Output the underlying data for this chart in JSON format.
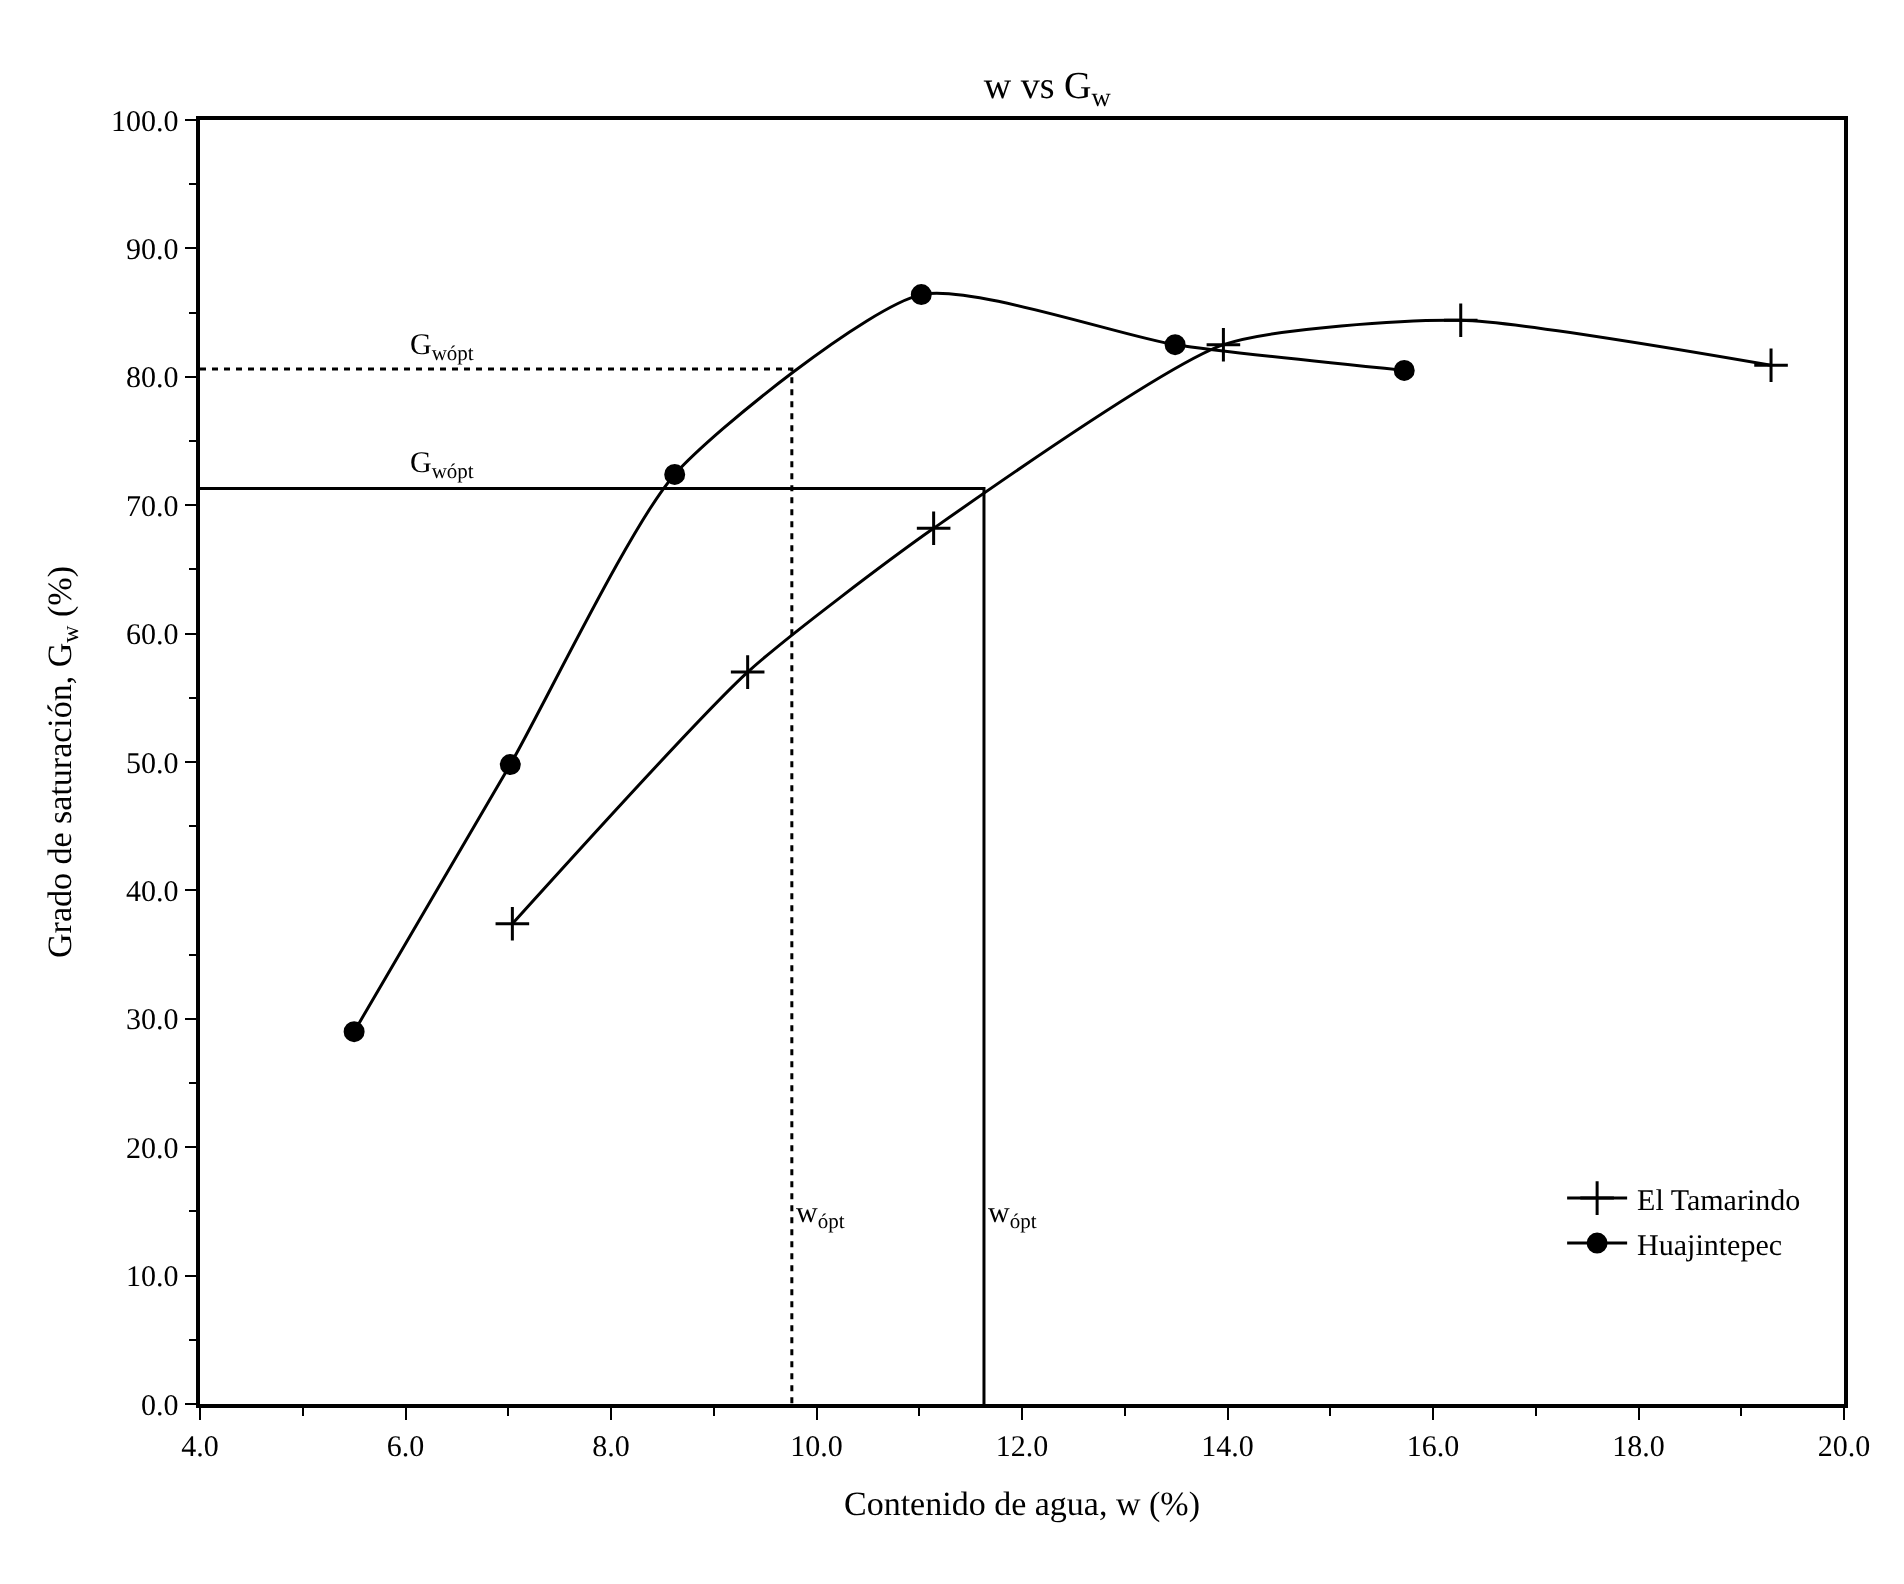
{
  "chart_data": {
    "type": "line",
    "title": "w vs G$_{w}$",
    "xlabel": "Contenido de agua, w (%)",
    "ylabel": "Grado de saturación, G$_{w}$ (%)",
    "xlim": [
      4,
      20
    ],
    "ylim": [
      0,
      100
    ],
    "xticks": [
      {
        "value": 4,
        "label": "4.0"
      },
      {
        "value": 6,
        "label": "6.0"
      },
      {
        "value": 8,
        "label": "8.0"
      },
      {
        "value": 10,
        "label": "10.0"
      },
      {
        "value": 12,
        "label": "12.0"
      },
      {
        "value": 14,
        "label": "14.0"
      },
      {
        "value": 16,
        "label": "16.0"
      },
      {
        "value": 18,
        "label": "18.0"
      },
      {
        "value": 20,
        "label": "20.0"
      }
    ],
    "yticks": [
      {
        "value": 0,
        "label": "0.0"
      },
      {
        "value": 10,
        "label": "10.0"
      },
      {
        "value": 20,
        "label": "20.0"
      },
      {
        "value": 30,
        "label": "30.0"
      },
      {
        "value": 40,
        "label": "40.0"
      },
      {
        "value": 50,
        "label": "50.0"
      },
      {
        "value": 60,
        "label": "60.0"
      },
      {
        "value": 70,
        "label": "70.0"
      },
      {
        "value": 80,
        "label": "80.0"
      },
      {
        "value": 90,
        "label": "90.0"
      },
      {
        "value": 100,
        "label": "100.0"
      }
    ],
    "legend": "bottom right",
    "series": [
      {
        "name": "El Tamarindo",
        "color": "#000000",
        "marker": "cross",
        "x": [
          7.04,
          9.33,
          11.14,
          13.96,
          16.27,
          19.29
        ],
        "values": [
          37.4,
          57.0,
          68.2,
          82.5,
          84.4,
          80.9
        ]
      },
      {
        "name": "Huajintepec",
        "color": "#000000",
        "marker": "circle",
        "x": [
          5.5,
          7.02,
          8.62,
          11.02,
          13.49,
          15.72
        ],
        "values": [
          29.0,
          49.8,
          72.4,
          86.4,
          82.5,
          80.5
        ]
      },
      {
        "color": "#000000",
        "marker": "none",
        "line_style": "dotted",
        "x": [
          4,
          9.76,
          9.76
        ],
        "values": [
          80.6,
          80.6,
          0
        ]
      },
      {
        "color": "#000000",
        "marker": "none",
        "line_style": "solid",
        "x": [
          4,
          11.63,
          11.63
        ],
        "values": [
          71.3,
          71.3,
          0
        ]
      }
    ],
    "annotations": [
      {
        "text": "G$_{wópt}$",
        "x": 6.0,
        "y": 80.6
      },
      {
        "text": "G$_{wópt}$",
        "x": 6.0,
        "y": 71.3
      },
      {
        "text": "w$_{ópt}$",
        "x": 9.76,
        "y": 13
      },
      {
        "text": "w$_{ópt}$",
        "x": 11.63,
        "y": 13
      }
    ]
  }
}
